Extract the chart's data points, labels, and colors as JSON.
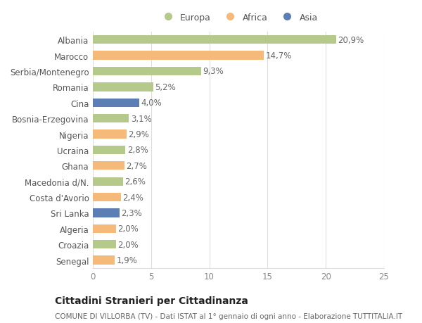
{
  "categories": [
    "Albania",
    "Marocco",
    "Serbia/Montenegro",
    "Romania",
    "Cina",
    "Bosnia-Erzegovina",
    "Nigeria",
    "Ucraina",
    "Ghana",
    "Macedonia d/N.",
    "Costa d'Avorio",
    "Sri Lanka",
    "Algeria",
    "Croazia",
    "Senegal"
  ],
  "values": [
    20.9,
    14.7,
    9.3,
    5.2,
    4.0,
    3.1,
    2.9,
    2.8,
    2.7,
    2.6,
    2.4,
    2.3,
    2.0,
    2.0,
    1.9
  ],
  "labels": [
    "20,9%",
    "14,7%",
    "9,3%",
    "5,2%",
    "4,0%",
    "3,1%",
    "2,9%",
    "2,8%",
    "2,7%",
    "2,6%",
    "2,4%",
    "2,3%",
    "2,0%",
    "2,0%",
    "1,9%"
  ],
  "bar_colors": [
    "#b5c98a",
    "#f5b97a",
    "#b5c98a",
    "#b5c98a",
    "#5b7fb5",
    "#b5c98a",
    "#f5b97a",
    "#b5c98a",
    "#f5b97a",
    "#b5c98a",
    "#f5b97a",
    "#5b7fb5",
    "#f5b97a",
    "#b5c98a",
    "#f5b97a"
  ],
  "xlim": [
    0,
    25
  ],
  "xticks": [
    0,
    5,
    10,
    15,
    20,
    25
  ],
  "title": "Cittadini Stranieri per Cittadinanza",
  "subtitle": "COMUNE DI VILLORBA (TV) - Dati ISTAT al 1° gennaio di ogni anno - Elaborazione TUTTITALIA.IT",
  "legend_labels": [
    "Europa",
    "Africa",
    "Asia"
  ],
  "legend_colors": [
    "#b5c98a",
    "#f5b97a",
    "#5b7fb5"
  ],
  "bg_color": "#ffffff",
  "bar_height": 0.55,
  "label_fontsize": 8.5,
  "tick_fontsize": 8.5,
  "title_fontsize": 10,
  "subtitle_fontsize": 7.5
}
